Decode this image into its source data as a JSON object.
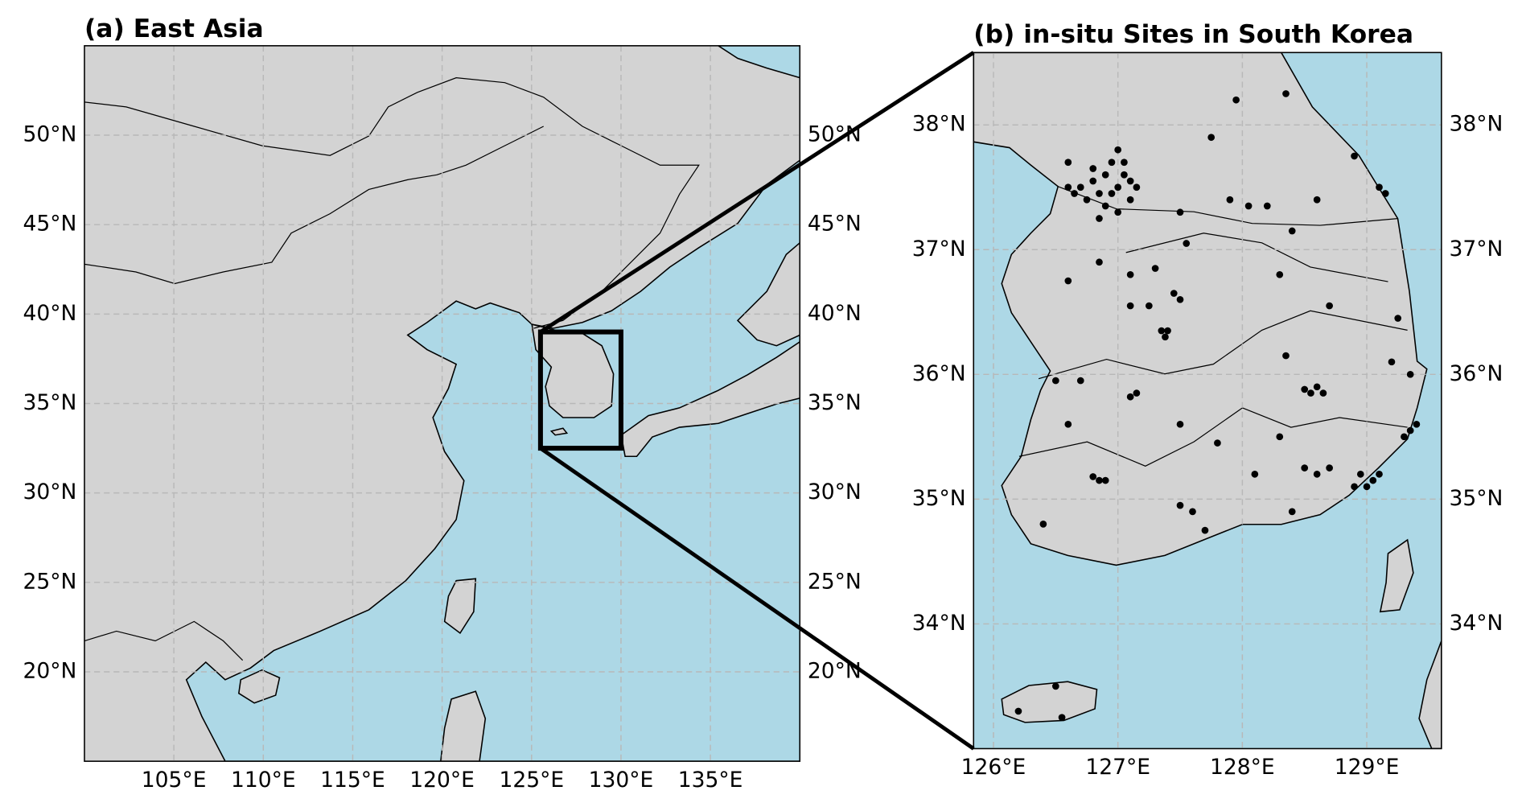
{
  "panels": [
    {
      "title": "(a) East Asia",
      "xlim": [
        100,
        140
      ],
      "ylim": [
        15,
        55
      ],
      "xticks": [
        {
          "value": 105,
          "label": "105°E"
        },
        {
          "value": 110,
          "label": "110°E"
        },
        {
          "value": 115,
          "label": "115°E"
        },
        {
          "value": 120,
          "label": "120°E"
        },
        {
          "value": 125,
          "label": "125°E"
        },
        {
          "value": 130,
          "label": "130°E"
        },
        {
          "value": 135,
          "label": "135°E"
        }
      ],
      "yticks": [
        {
          "value": 20,
          "label": "20°N"
        },
        {
          "value": 25,
          "label": "25°N"
        },
        {
          "value": 30,
          "label": "30°N"
        },
        {
          "value": 35,
          "label": "35°N"
        },
        {
          "value": 40,
          "label": "40°N"
        },
        {
          "value": 45,
          "label": "45°N"
        },
        {
          "value": 50,
          "label": "50°N"
        }
      ],
      "box": {
        "lon": [
          125.5,
          130
        ],
        "lat": [
          32.5,
          39
        ]
      }
    },
    {
      "title": "(b) in-situ Sites in South Korea",
      "xlim": [
        125.84,
        129.6
      ],
      "ylim": [
        33,
        38.58
      ],
      "xticks": [
        {
          "value": 126,
          "label": "126°E"
        },
        {
          "value": 127,
          "label": "127°E"
        },
        {
          "value": 128,
          "label": "128°E"
        },
        {
          "value": 129,
          "label": "129°E"
        }
      ],
      "yticks": [
        {
          "value": 34,
          "label": "34°N"
        },
        {
          "value": 35,
          "label": "35°N"
        },
        {
          "value": 36,
          "label": "36°N"
        },
        {
          "value": 37,
          "label": "37°N"
        },
        {
          "value": 38,
          "label": "38°N"
        }
      ],
      "sites": {
        "lon": [
          126.7,
          126.8,
          126.9,
          127.0,
          127.05,
          126.95,
          126.85,
          127.1,
          126.75,
          126.65,
          126.9,
          127.0,
          127.1,
          126.8,
          126.95,
          127.0,
          126.6,
          127.05,
          127.15,
          126.85,
          126.6,
          127.75,
          127.95,
          128.35,
          128.9,
          129.1,
          129.15,
          128.6,
          128.2,
          128.05,
          127.9,
          128.4,
          127.5,
          127.55,
          127.35,
          127.4,
          127.38,
          127.45,
          127.5,
          127.25,
          127.3,
          127.1,
          126.85,
          126.6,
          127.1,
          128.6,
          128.55,
          128.65,
          128.5,
          129.35,
          129.2,
          128.35,
          128.3,
          128.7,
          129.25,
          127.15,
          127.1,
          126.85,
          126.9,
          126.8,
          126.5,
          126.7,
          126.6,
          127.5,
          127.8,
          128.1,
          129.0,
          129.05,
          128.95,
          129.1,
          128.9,
          129.35,
          129.3,
          129.4,
          128.6,
          128.7,
          128.5,
          128.3,
          128.4,
          127.7,
          127.5,
          127.6,
          126.4,
          126.5,
          126.55,
          126.2
        ],
        "lat": [
          37.5,
          37.55,
          37.6,
          37.5,
          37.6,
          37.45,
          37.45,
          37.4,
          37.4,
          37.45,
          37.35,
          37.3,
          37.55,
          37.65,
          37.7,
          37.8,
          37.5,
          37.7,
          37.5,
          37.25,
          37.7,
          37.9,
          38.2,
          38.25,
          37.75,
          37.5,
          37.45,
          37.4,
          37.35,
          37.35,
          37.4,
          37.15,
          37.3,
          37.05,
          36.35,
          36.35,
          36.3,
          36.65,
          36.6,
          36.55,
          36.85,
          36.8,
          36.9,
          36.75,
          36.55,
          35.9,
          35.85,
          35.85,
          35.88,
          36.0,
          36.1,
          36.15,
          36.8,
          36.55,
          36.45,
          35.85,
          35.82,
          35.15,
          35.15,
          35.18,
          35.95,
          35.95,
          35.6,
          35.6,
          35.45,
          35.2,
          35.1,
          35.15,
          35.2,
          35.2,
          35.1,
          35.55,
          35.5,
          35.6,
          35.2,
          35.25,
          35.25,
          35.5,
          34.9,
          34.75,
          34.95,
          34.9,
          34.8,
          33.5,
          33.25,
          33.3
        ]
      }
    }
  ]
}
